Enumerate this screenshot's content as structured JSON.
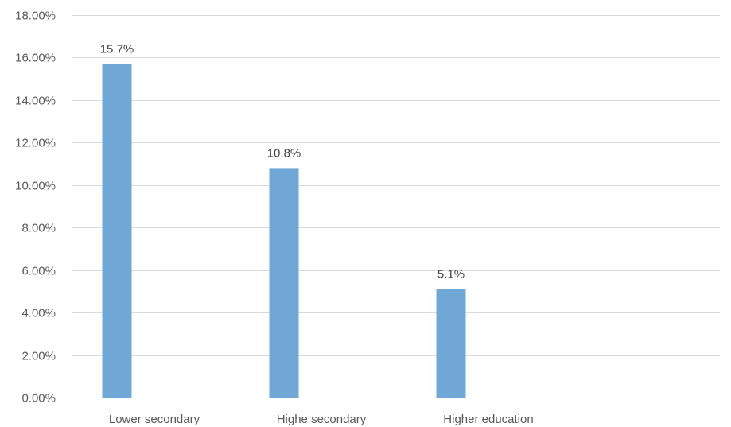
{
  "chart_data": {
    "type": "bar",
    "categories": [
      "Lower secondary",
      "Highe secondary",
      "Higher education"
    ],
    "values": [
      15.7,
      10.8,
      5.1
    ],
    "data_labels": [
      "15.7%",
      "10.8%",
      "5.1%"
    ],
    "ylim": [
      0,
      18
    ],
    "y_ticks": [
      0,
      2,
      4,
      6,
      8,
      10,
      12,
      14,
      16,
      18
    ],
    "y_tick_labels": [
      "0.00%",
      "2.00%",
      "4.00%",
      "6.00%",
      "8.00%",
      "10.00%",
      "12.00%",
      "14.00%",
      "16.00%",
      "18.00%"
    ],
    "grid": true,
    "bar_color": "#6fa8d6",
    "title": "",
    "xlabel": "",
    "ylabel": ""
  }
}
